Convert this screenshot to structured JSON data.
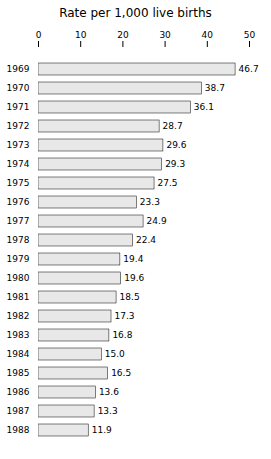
{
  "chart_data": {
    "type": "bar",
    "orientation": "horizontal",
    "title": "Rate per 1,000 live births",
    "categories": [
      "1969",
      "1970",
      "1971",
      "1972",
      "1973",
      "1974",
      "1975",
      "1976",
      "1977",
      "1978",
      "1979",
      "1980",
      "1981",
      "1982",
      "1983",
      "1984",
      "1985",
      "1986",
      "1987",
      "1988"
    ],
    "values": [
      46.7,
      38.7,
      36.1,
      28.7,
      29.6,
      29.3,
      27.5,
      23.3,
      24.9,
      22.4,
      19.4,
      19.6,
      18.5,
      17.3,
      16.8,
      15.0,
      16.5,
      13.6,
      13.3,
      11.9
    ],
    "value_labels": [
      "46.7",
      "38.7",
      "36.1",
      "28.7",
      "29.6",
      "29.3",
      "27.5",
      "23.3",
      "24.9",
      "22.4",
      "19.4",
      "19.6",
      "18.5",
      "17.3",
      "16.8",
      "15.0",
      "16.5",
      "13.6",
      "13.3",
      "11.9"
    ],
    "color": "#e8e8e8",
    "xlim": [
      0,
      50
    ],
    "xticks": [
      0,
      10,
      20,
      30,
      40,
      50
    ],
    "data_labels": true,
    "grid": false
  }
}
